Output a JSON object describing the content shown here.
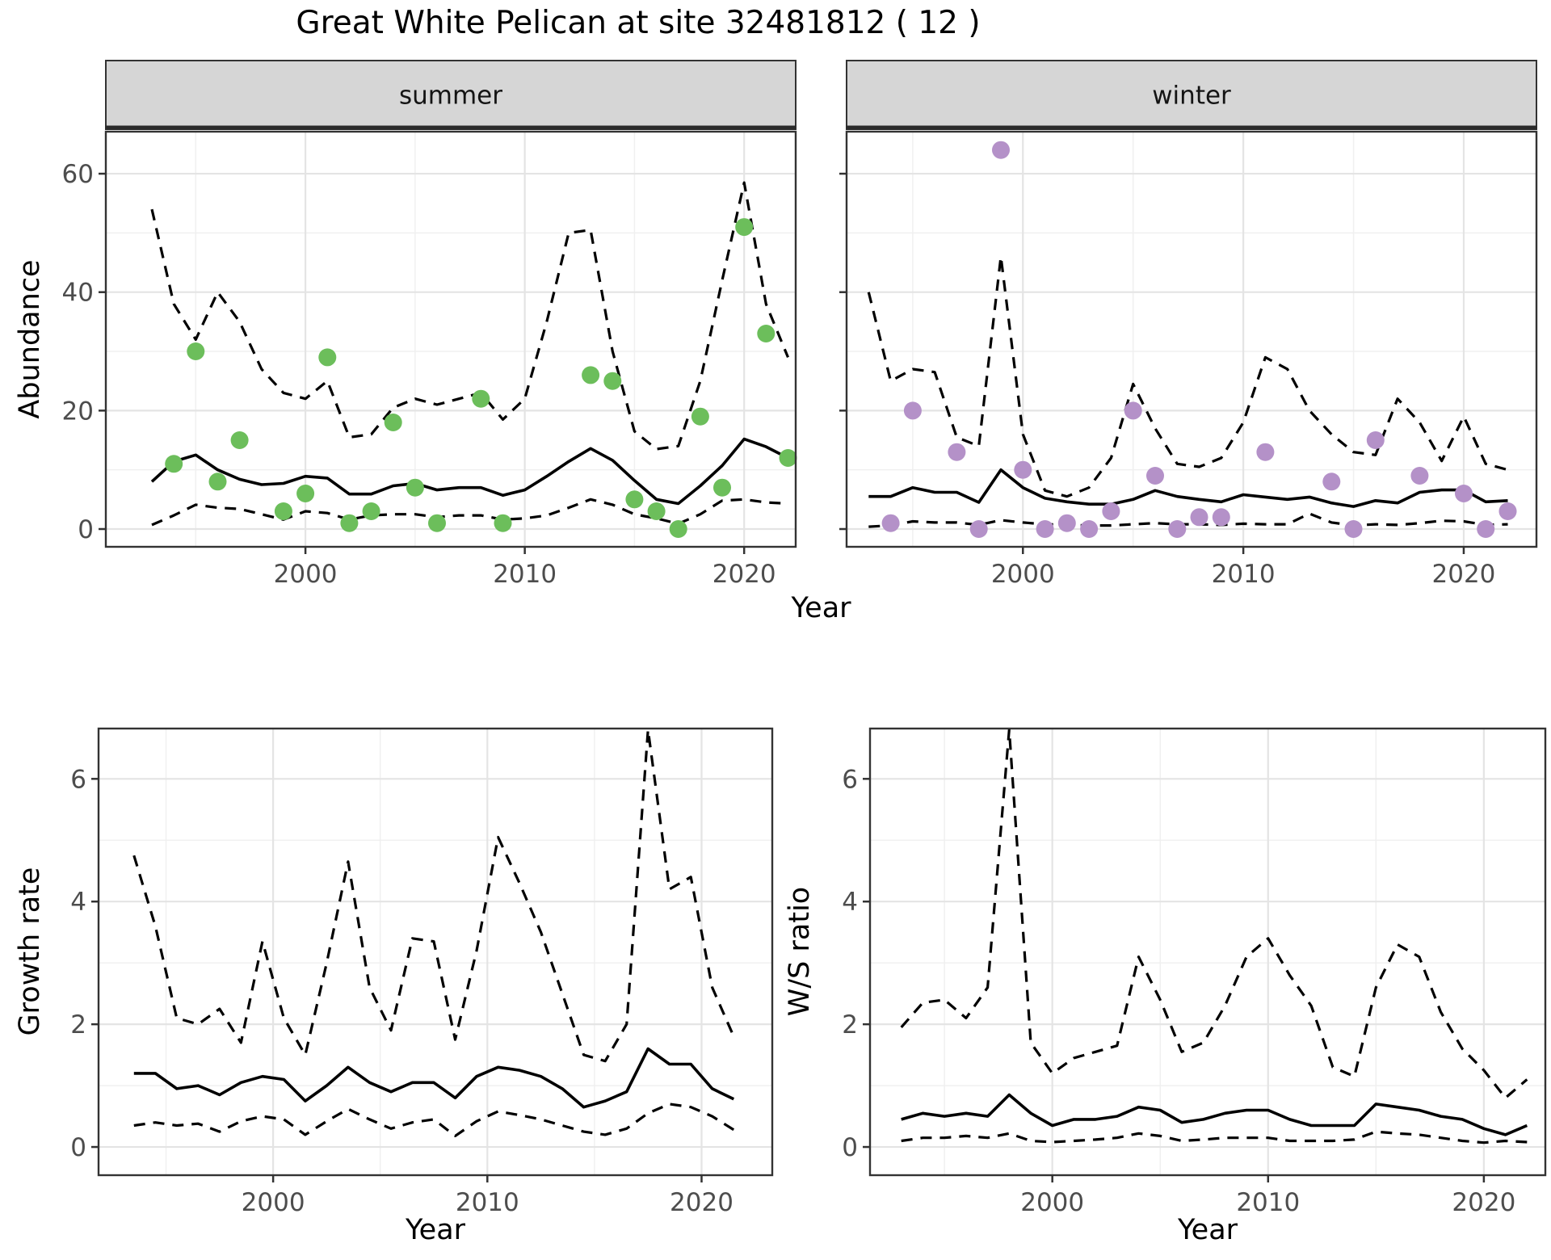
{
  "title": "Great White Pelican at site 32481812 ( 12 )",
  "colors": {
    "summer_point": "#6cbe5b",
    "winter_point": "#b491c8",
    "line": "#000000",
    "grid_major": "#e4e4e4",
    "grid_minor": "#f0f0f0",
    "strip_bg": "#d6d6d6",
    "panel_border": "#333333",
    "tick_text": "#4d4d4d"
  },
  "chart_data": [
    {
      "type": "line",
      "name": "abundance-summer",
      "strip": "summer",
      "xlabel": "Year",
      "ylabel": "Abundance",
      "xlim": [
        1990.9,
        2022.35
      ],
      "ylim": [
        -3,
        67.1
      ],
      "xticks_major": [
        2000,
        2010,
        2020
      ],
      "xticks_minor": [
        1995,
        2005,
        2015
      ],
      "yticks_major": [
        0,
        20,
        40,
        60
      ],
      "yticks_minor": [
        10,
        30,
        50
      ],
      "grid": true,
      "legend": "none",
      "series": [
        {
          "name": "upper-ci",
          "style": "dashed",
          "x": [
            1993,
            1994,
            1995,
            1996,
            1997,
            1998,
            1999,
            2000,
            2001,
            2002,
            2003,
            2004,
            2005,
            2006,
            2007,
            2008,
            2009,
            2010,
            2011,
            2012,
            2013,
            2014,
            2015,
            2016,
            2017,
            2018,
            2019,
            2020,
            2021,
            2022
          ],
          "y": [
            54,
            38,
            32,
            40,
            35,
            27,
            23,
            22,
            25,
            15.5,
            16,
            20.5,
            22,
            21,
            22,
            23,
            18.5,
            22,
            35,
            50,
            50.5,
            30,
            16.5,
            13.5,
            14,
            25,
            42,
            58.5,
            38,
            29
          ]
        },
        {
          "name": "mean",
          "style": "solid",
          "x": [
            1993,
            1994,
            1995,
            1996,
            1997,
            1998,
            1999,
            2000,
            2001,
            2002,
            2003,
            2004,
            2005,
            2006,
            2007,
            2008,
            2009,
            2010,
            2011,
            2012,
            2013,
            2014,
            2015,
            2016,
            2017,
            2018,
            2019,
            2020,
            2021,
            2022
          ],
          "y": [
            8,
            11.4,
            12.5,
            10,
            8.4,
            7.5,
            7.7,
            8.9,
            8.6,
            5.9,
            5.9,
            7.3,
            7.7,
            6.6,
            7,
            7,
            5.7,
            6.6,
            8.9,
            11.4,
            13.6,
            11.6,
            8.2,
            5,
            4.3,
            7.3,
            10.7,
            15.2,
            13.9,
            12
          ]
        },
        {
          "name": "lower-ci",
          "style": "dashed",
          "x": [
            1993,
            1994,
            1995,
            1996,
            1997,
            1998,
            1999,
            2000,
            2001,
            2002,
            2003,
            2004,
            2005,
            2006,
            2007,
            2008,
            2009,
            2010,
            2011,
            2012,
            2013,
            2014,
            2015,
            2016,
            2017,
            2018,
            2019,
            2020,
            2021,
            2022
          ],
          "y": [
            0.7,
            2.3,
            4.1,
            3.6,
            3.4,
            2.5,
            1.6,
            3,
            2.7,
            1.6,
            2.3,
            2.5,
            2.5,
            2,
            2.3,
            2.3,
            1.6,
            1.8,
            2.3,
            3.6,
            5,
            4.1,
            2.5,
            1.8,
            0.9,
            2.5,
            4.8,
            5,
            4.5,
            4.3
          ]
        }
      ],
      "points": {
        "color_key": "summer_point",
        "x": [
          1994,
          1995,
          1996,
          1997,
          1999,
          2000,
          2001,
          2002,
          2003,
          2004,
          2005,
          2006,
          2008,
          2009,
          2013,
          2014,
          2015,
          2016,
          2017,
          2018,
          2019,
          2020,
          2021,
          2022
        ],
        "y": [
          11,
          30,
          8,
          15,
          3,
          6,
          29,
          1,
          3,
          18,
          7,
          1,
          22,
          1,
          26,
          25,
          5,
          3,
          0,
          19,
          7,
          51,
          33,
          12
        ]
      }
    },
    {
      "type": "line",
      "name": "abundance-winter",
      "strip": "winter",
      "xlabel": "Year",
      "ylabel": "Abundance",
      "xlim": [
        1992.0,
        2023.3
      ],
      "ylim": [
        -3,
        67.1
      ],
      "xticks_major": [
        2000,
        2010,
        2020
      ],
      "xticks_minor": [
        1995,
        2005,
        2015
      ],
      "yticks_major": [
        0,
        20,
        40,
        60
      ],
      "yticks_minor": [
        10,
        30,
        50
      ],
      "grid": true,
      "legend": "none",
      "series": [
        {
          "name": "upper-ci",
          "style": "dashed",
          "x": [
            1993,
            1994,
            1995,
            1996,
            1997,
            1998,
            1999,
            2000,
            2001,
            2002,
            2003,
            2004,
            2005,
            2006,
            2007,
            2008,
            2009,
            2010,
            2011,
            2012,
            2013,
            2014,
            2015,
            2016,
            2017,
            2018,
            2019,
            2020,
            2021,
            2022
          ],
          "y": [
            40,
            25,
            27,
            26.5,
            15.5,
            14,
            46,
            16,
            6.5,
            5.5,
            7,
            12,
            24.5,
            17,
            11,
            10.5,
            12,
            18,
            29,
            27,
            20,
            16,
            13,
            12.5,
            22,
            18,
            11.5,
            19,
            11,
            10
          ]
        },
        {
          "name": "mean",
          "style": "solid",
          "x": [
            1993,
            1994,
            1995,
            1996,
            1997,
            1998,
            1999,
            2000,
            2001,
            2002,
            2003,
            2004,
            2005,
            2006,
            2007,
            2008,
            2009,
            2010,
            2011,
            2012,
            2013,
            2014,
            2015,
            2016,
            2017,
            2018,
            2019,
            2020,
            2021,
            2022
          ],
          "y": [
            5.5,
            5.5,
            7,
            6.2,
            6.2,
            4.5,
            10,
            7,
            5.2,
            4.6,
            4.2,
            4.2,
            5,
            6.5,
            5.5,
            5,
            4.6,
            5.8,
            5.4,
            5,
            5.4,
            4.4,
            3.8,
            4.8,
            4.4,
            6.2,
            6.6,
            6.6,
            4.6,
            4.8
          ]
        },
        {
          "name": "lower-ci",
          "style": "dashed",
          "x": [
            1993,
            1994,
            1995,
            1996,
            1997,
            1998,
            1999,
            2000,
            2001,
            2002,
            2003,
            2004,
            2005,
            2006,
            2007,
            2008,
            2009,
            2010,
            2011,
            2012,
            2013,
            2014,
            2015,
            2016,
            2017,
            2018,
            2019,
            2020,
            2021,
            2022
          ],
          "y": [
            0.4,
            0.6,
            1.3,
            1.1,
            1.1,
            0.7,
            1.5,
            1.1,
            0.8,
            0.7,
            0.6,
            0.6,
            0.8,
            1,
            0.8,
            0.8,
            0.7,
            0.9,
            0.8,
            0.8,
            2.6,
            1.1,
            0.6,
            0.8,
            0.7,
            1,
            1.4,
            1.3,
            0.7,
            0.8
          ]
        }
      ],
      "points": {
        "color_key": "winter_point",
        "x": [
          1994,
          1995,
          1997,
          1998,
          1999,
          2000,
          2001,
          2002,
          2003,
          2004,
          2005,
          2006,
          2007,
          2008,
          2009,
          2011,
          2014,
          2015,
          2016,
          2018,
          2020,
          2021,
          2022
        ],
        "y": [
          1,
          20,
          13,
          0,
          64,
          10,
          0,
          1,
          0,
          3,
          20,
          9,
          0,
          2,
          2,
          13,
          8,
          0,
          15,
          9,
          6,
          0,
          3
        ]
      }
    },
    {
      "type": "line",
      "name": "growth-rate",
      "strip": null,
      "xlabel": "Year",
      "ylabel": "Growth rate",
      "xlim": [
        1991.85,
        2023.3
      ],
      "ylim": [
        -0.46,
        6.82
      ],
      "xticks_major": [
        2000,
        2010,
        2020
      ],
      "xticks_minor": [
        1995,
        2005,
        2015
      ],
      "yticks_major": [
        0,
        2,
        4,
        6
      ],
      "yticks_minor": [
        1,
        3,
        5
      ],
      "grid": true,
      "legend": "none",
      "series": [
        {
          "name": "upper-ci",
          "style": "dashed",
          "x": [
            1993.5,
            1994.5,
            1995.5,
            1996.5,
            1997.5,
            1998.5,
            1999.5,
            2000.5,
            2001.5,
            2002.5,
            2003.5,
            2004.5,
            2005.5,
            2006.5,
            2007.5,
            2008.5,
            2009.5,
            2010.5,
            2011.5,
            2012.5,
            2013.5,
            2014.5,
            2015.5,
            2016.5,
            2017.5,
            2018.5,
            2019.5,
            2020.5,
            2021.5
          ],
          "y": [
            4.75,
            3.6,
            2.1,
            2.0,
            2.25,
            1.7,
            3.35,
            2.1,
            1.5,
            3.0,
            4.65,
            2.6,
            1.9,
            3.4,
            3.35,
            1.75,
            3.2,
            5.05,
            4.3,
            3.5,
            2.5,
            1.5,
            1.4,
            2.0,
            6.8,
            4.2,
            4.4,
            2.6,
            1.8
          ]
        },
        {
          "name": "mean",
          "style": "solid",
          "x": [
            1993.5,
            1994.5,
            1995.5,
            1996.5,
            1997.5,
            1998.5,
            1999.5,
            2000.5,
            2001.5,
            2002.5,
            2003.5,
            2004.5,
            2005.5,
            2006.5,
            2007.5,
            2008.5,
            2009.5,
            2010.5,
            2011.5,
            2012.5,
            2013.5,
            2014.5,
            2015.5,
            2016.5,
            2017.5,
            2018.5,
            2019.5,
            2020.5,
            2021.5
          ],
          "y": [
            1.2,
            1.2,
            0.95,
            1.0,
            0.85,
            1.05,
            1.15,
            1.1,
            0.75,
            1.0,
            1.3,
            1.05,
            0.9,
            1.05,
            1.05,
            0.8,
            1.15,
            1.3,
            1.25,
            1.15,
            0.95,
            0.65,
            0.75,
            0.9,
            1.6,
            1.35,
            1.35,
            0.95,
            0.78
          ]
        },
        {
          "name": "lower-ci",
          "style": "dashed",
          "x": [
            1993.5,
            1994.5,
            1995.5,
            1996.5,
            1997.5,
            1998.5,
            1999.5,
            2000.5,
            2001.5,
            2002.5,
            2003.5,
            2004.5,
            2005.5,
            2006.5,
            2007.5,
            2008.5,
            2009.5,
            2010.5,
            2011.5,
            2012.5,
            2013.5,
            2014.5,
            2015.5,
            2016.5,
            2017.5,
            2018.5,
            2019.5,
            2020.5,
            2021.5
          ],
          "y": [
            0.35,
            0.4,
            0.35,
            0.38,
            0.25,
            0.42,
            0.5,
            0.45,
            0.2,
            0.42,
            0.62,
            0.45,
            0.3,
            0.4,
            0.45,
            0.18,
            0.42,
            0.58,
            0.52,
            0.45,
            0.35,
            0.25,
            0.2,
            0.3,
            0.55,
            0.7,
            0.65,
            0.5,
            0.28
          ]
        }
      ],
      "points": null
    },
    {
      "type": "line",
      "name": "ws-ratio",
      "strip": null,
      "xlabel": "Year",
      "ylabel": "W/S ratio",
      "xlim": [
        1991.55,
        2022.85
      ],
      "ylim": [
        -0.46,
        6.82
      ],
      "xticks_major": [
        2000,
        2010,
        2020
      ],
      "xticks_minor": [
        1995,
        2005,
        2015
      ],
      "yticks_major": [
        0,
        2,
        4,
        6
      ],
      "yticks_minor": [
        1,
        3,
        5
      ],
      "grid": true,
      "legend": "none",
      "series": [
        {
          "name": "upper-ci",
          "style": "dashed",
          "x": [
            1993,
            1994,
            1995,
            1996,
            1997,
            1998,
            1999,
            2000,
            2001,
            2002,
            2003,
            2004,
            2005,
            2006,
            2007,
            2008,
            2009,
            2010,
            2011,
            2012,
            2013,
            2014,
            2015,
            2016,
            2017,
            2018,
            2019,
            2020,
            2021,
            2022
          ],
          "y": [
            1.95,
            2.35,
            2.4,
            2.1,
            2.6,
            6.8,
            1.7,
            1.2,
            1.45,
            1.55,
            1.65,
            3.1,
            2.4,
            1.55,
            1.7,
            2.3,
            3.1,
            3.4,
            2.8,
            2.3,
            1.3,
            1.15,
            2.6,
            3.3,
            3.1,
            2.2,
            1.6,
            1.25,
            0.8,
            1.1
          ]
        },
        {
          "name": "mean",
          "style": "solid",
          "x": [
            1993,
            1994,
            1995,
            1996,
            1997,
            1998,
            1999,
            2000,
            2001,
            2002,
            2003,
            2004,
            2005,
            2006,
            2007,
            2008,
            2009,
            2010,
            2011,
            2012,
            2013,
            2014,
            2015,
            2016,
            2017,
            2018,
            2019,
            2020,
            2021,
            2022
          ],
          "y": [
            0.45,
            0.55,
            0.5,
            0.55,
            0.5,
            0.85,
            0.55,
            0.35,
            0.45,
            0.45,
            0.5,
            0.65,
            0.6,
            0.4,
            0.45,
            0.55,
            0.6,
            0.6,
            0.45,
            0.35,
            0.35,
            0.35,
            0.7,
            0.65,
            0.6,
            0.5,
            0.45,
            0.3,
            0.2,
            0.35
          ]
        },
        {
          "name": "lower-ci",
          "style": "dashed",
          "x": [
            1993,
            1994,
            1995,
            1996,
            1997,
            1998,
            1999,
            2000,
            2001,
            2002,
            2003,
            2004,
            2005,
            2006,
            2007,
            2008,
            2009,
            2010,
            2011,
            2012,
            2013,
            2014,
            2015,
            2016,
            2017,
            2018,
            2019,
            2020,
            2021,
            2022
          ],
          "y": [
            0.1,
            0.15,
            0.15,
            0.18,
            0.15,
            0.22,
            0.1,
            0.08,
            0.1,
            0.12,
            0.15,
            0.22,
            0.18,
            0.1,
            0.12,
            0.15,
            0.15,
            0.15,
            0.1,
            0.1,
            0.1,
            0.12,
            0.25,
            0.22,
            0.2,
            0.15,
            0.1,
            0.07,
            0.1,
            0.08
          ]
        }
      ],
      "points": null
    }
  ]
}
